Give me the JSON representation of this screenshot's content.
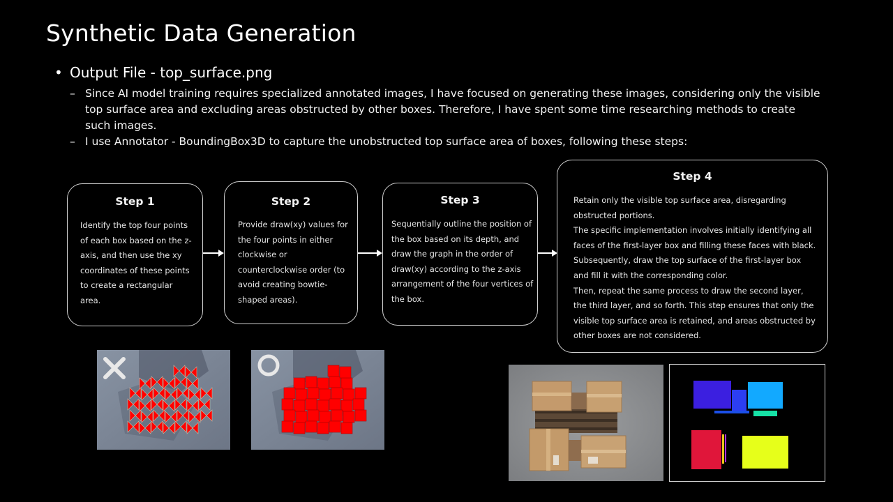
{
  "slide": {
    "title": "Synthetic Data Generation",
    "bullet": {
      "marker": "•",
      "text": "Output File - top_surface.png"
    },
    "subpoints": [
      {
        "marker": "–",
        "text": "Since AI model training requires specialized annotated images, I have focused on generating these images, considering only the visible top surface area and excluding areas obstructed by other boxes. Therefore, I have spent some time researching methods to create such images."
      },
      {
        "marker": "–",
        "text": "I use Annotator - BoundingBox3D to capture the unobstructed top surface area of boxes, following these steps:"
      }
    ]
  },
  "steps": [
    {
      "title": "Step 1",
      "body": "Identify the top four points of each box based on the z-axis, and then use the xy coordinates of these points to create a rectangular area."
    },
    {
      "title": "Step 2",
      "body": "Provide draw(xy) values for the four points in either clockwise or counterclockwise order (to avoid creating bowtie-shaped areas)."
    },
    {
      "title": "Step 3",
      "body": "Sequentially outline the position of the box based on its depth, and draw the graph in the order of draw(xy) according to the z-axis arrangement of the four vertices of the box."
    },
    {
      "title": "Step 4",
      "body_lines": [
        "Retain only the visible top surface area, disregarding obstructed portions.",
        "The specific implementation involves initially identifying all faces of the first-layer box and filling these faces with black. Subsequently, draw the top surface of the first-layer box and fill it with the corresponding color.",
        "Then, repeat the same process to draw the second layer, the third layer, and so forth. This step ensures that only the visible top surface area is retained, and areas obstructed by other boxes are not considered."
      ]
    }
  ],
  "icons": {
    "wrong": "cross-mark-icon",
    "correct": "circle-mark-icon"
  },
  "colors": {
    "highlight_red": "#ff0000",
    "mask_blue": "#3b1fe0",
    "mask_cyan": "#12a9ff",
    "mask_teal": "#16e2a6",
    "mask_red": "#e0163a",
    "mask_yellow": "#e6ff1a"
  }
}
